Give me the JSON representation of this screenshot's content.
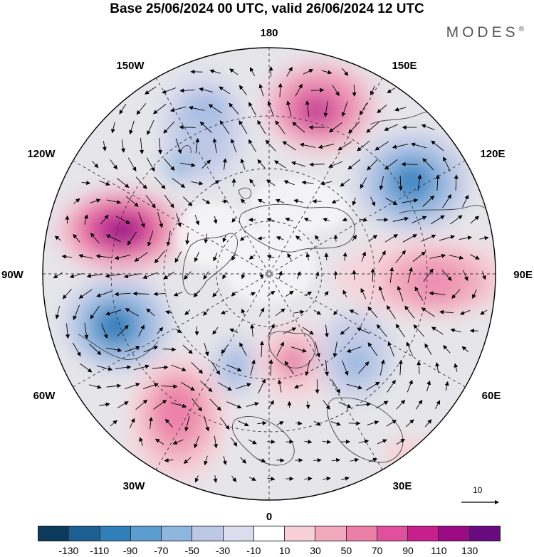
{
  "title": "Base 25/06/2024 00 UTC, valid 26/06/2024 12 UTC",
  "brand": "MODES",
  "brand_mark": "®",
  "map_labels": {
    "top": "180",
    "bottom": "0",
    "left": "90W",
    "right": "90E",
    "upper_left_1": "150W",
    "upper_left_2": "120W",
    "upper_right_1": "150E",
    "upper_right_2": "120E",
    "lower_left_1": "60W",
    "lower_left_2": "30W",
    "lower_right_1": "60E",
    "lower_right_2": "30E"
  },
  "reference_vector_label": "10",
  "colorbar": {
    "colors": [
      "#0c3a5c",
      "#1b5f93",
      "#2f7fbb",
      "#5a9ed0",
      "#8fb6df",
      "#bcc8e6",
      "#dddcee",
      "#ffffff",
      "#f6d0d6",
      "#f1a9bb",
      "#ec7fa8",
      "#e0509c",
      "#c71f8c",
      "#9c0a85",
      "#6a0a80"
    ],
    "ticks": [
      "-130",
      "-110",
      "-90",
      "-70",
      "-50",
      "-30",
      "-10",
      "10",
      "30",
      "50",
      "70",
      "90",
      "110",
      "130"
    ]
  }
}
